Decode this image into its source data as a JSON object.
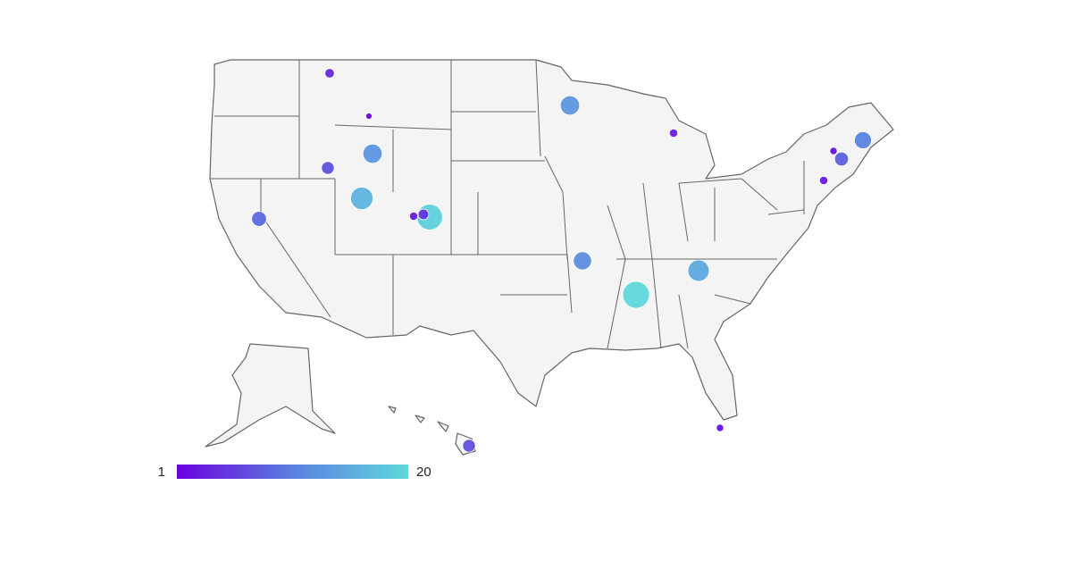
{
  "map": {
    "legend": {
      "min": 1,
      "max": 20,
      "colors": [
        "#6a00e0",
        "#5b7fe0",
        "#5fd8dc"
      ]
    },
    "points": [
      {
        "value": 4
      },
      {
        "value": 1
      },
      {
        "value": 7
      },
      {
        "value": 13
      },
      {
        "value": 16
      },
      {
        "value": 3
      },
      {
        "value": 5
      },
      {
        "value": 19
      },
      {
        "value": 9
      },
      {
        "value": 13
      },
      {
        "value": 3
      },
      {
        "value": 12
      },
      {
        "value": 15
      },
      {
        "value": 20
      },
      {
        "value": 11
      },
      {
        "value": 8
      },
      {
        "value": 2
      },
      {
        "value": 3
      },
      {
        "value": 2
      },
      {
        "value": 7
      }
    ]
  }
}
